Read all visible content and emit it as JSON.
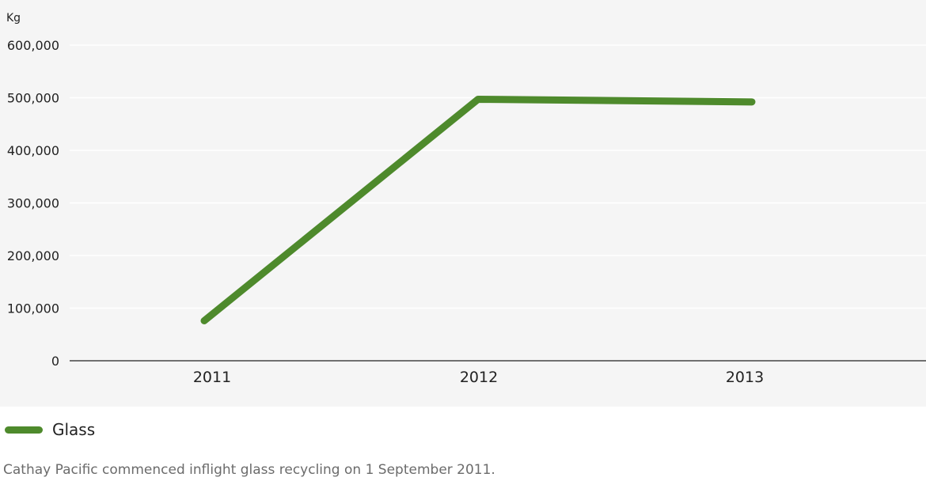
{
  "chart_data": {
    "type": "line",
    "ylabel": "Kg",
    "categories": [
      "2011",
      "2012",
      "2013"
    ],
    "series": [
      {
        "name": "Glass",
        "values": [
          76000,
          497000,
          492000
        ],
        "color": "#4e8a2c"
      }
    ],
    "ylim": [
      0,
      600000
    ],
    "yticks": [
      0,
      100000,
      200000,
      300000,
      400000,
      500000,
      600000
    ],
    "ytick_labels": [
      "0",
      "100,000",
      "200,000",
      "300,000",
      "400,000",
      "500,000",
      "600,000"
    ],
    "grid": true,
    "legend": "bottom-left"
  },
  "legend": {
    "label": "Glass"
  },
  "footnote": "Cathay Pacific commenced inflight glass recycling on 1 September 2011."
}
